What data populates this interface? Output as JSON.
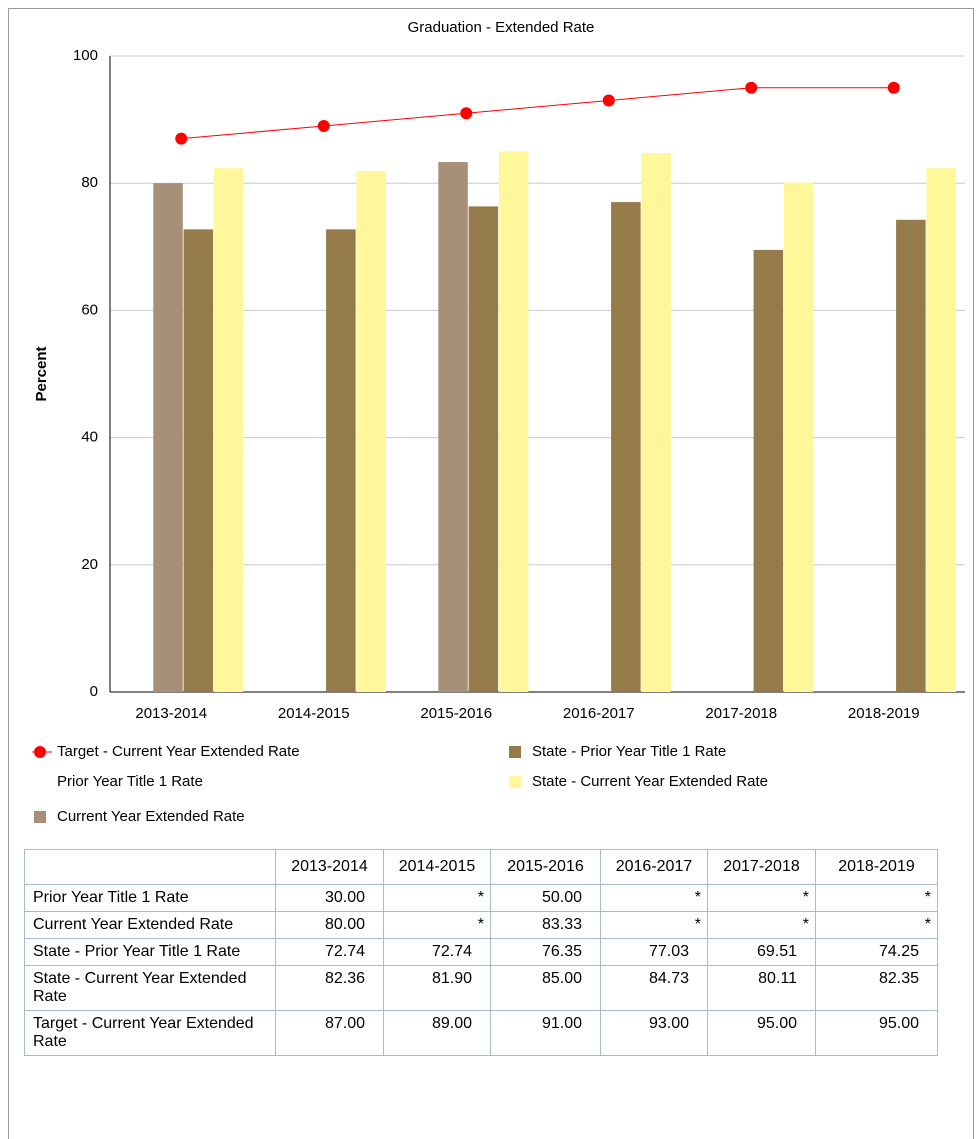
{
  "chart_data": {
    "type": "bar",
    "title": "Graduation - Extended Rate",
    "y_label": "Percent",
    "categories": [
      "2013-2014",
      "2014-2015",
      "2015-2016",
      "2016-2017",
      "2017-2018",
      "2018-2019"
    ],
    "ylim": [
      0,
      100
    ],
    "yticks": [
      0,
      20,
      40,
      60,
      80,
      100
    ],
    "grid": true,
    "series": [
      {
        "name": "Prior Year Title 1 Rate",
        "color": "transparent",
        "values": [
          30,
          null,
          50,
          null,
          null,
          null
        ]
      },
      {
        "name": "Current Year Extended Rate",
        "color": "#a89078",
        "values": [
          80,
          null,
          83.33,
          null,
          null,
          null
        ]
      },
      {
        "name": "State - Prior Year Title 1 Rate",
        "color": "#957a4a",
        "values": [
          72.74,
          72.74,
          76.35,
          77.03,
          69.51,
          74.25
        ]
      },
      {
        "name": "State - Current Year Extended Rate",
        "color": "#fff799",
        "values": [
          82.36,
          81.9,
          85,
          84.73,
          80.11,
          82.35
        ]
      },
      {
        "name": "Target - Current Year Extended Rate",
        "type": "line",
        "color": "#ff0000",
        "values": [
          87,
          89,
          91,
          93,
          95,
          95
        ]
      }
    ]
  },
  "table": {
    "header": [
      "2013-2014",
      "2014-2015",
      "2015-2016",
      "2016-2017",
      "2017-2018",
      "2018-2019"
    ],
    "rows": [
      {
        "label": "Prior Year Title 1 Rate",
        "cells": [
          "30.00",
          "*",
          "50.00",
          "*",
          "*",
          "*"
        ]
      },
      {
        "label": "Current Year Extended Rate",
        "cells": [
          "80.00",
          "*",
          "83.33",
          "*",
          "*",
          "*"
        ]
      },
      {
        "label": "State - Prior Year Title 1 Rate",
        "cells": [
          "72.74",
          "72.74",
          "76.35",
          "77.03",
          "69.51",
          "74.25"
        ]
      },
      {
        "label": "State - Current Year Extended Rate",
        "cells": [
          "82.36",
          "81.90",
          "85.00",
          "84.73",
          "80.11",
          "82.35"
        ]
      },
      {
        "label": "Target - Current Year Extended Rate",
        "cells": [
          "87.00",
          "89.00",
          "91.00",
          "93.00",
          "95.00",
          "95.00"
        ]
      }
    ]
  }
}
